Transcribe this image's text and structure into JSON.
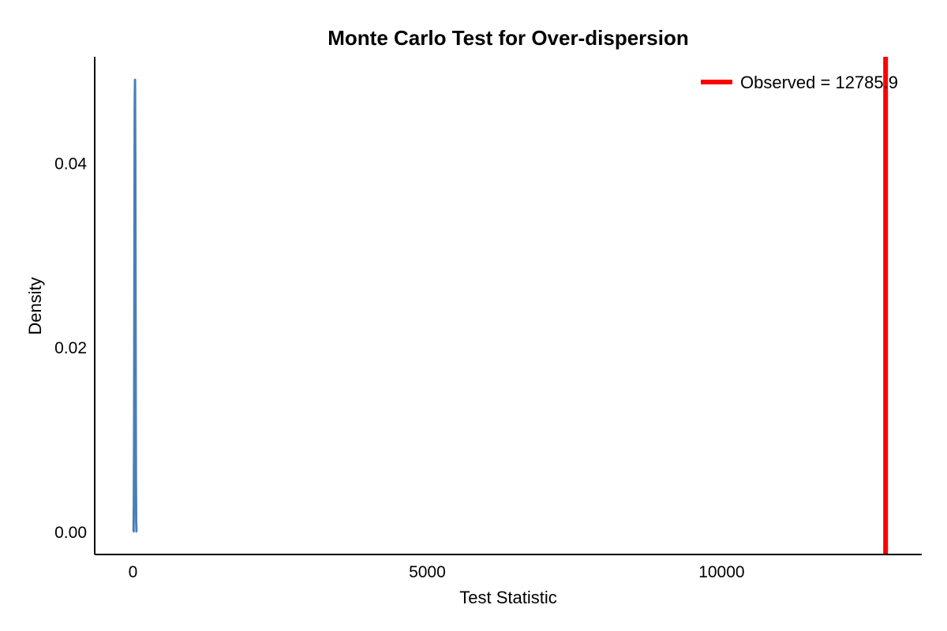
{
  "chart_data": {
    "type": "line",
    "title": "Monte Carlo Test for Over-dispersion",
    "xlabel": "Test Statistic",
    "ylabel": "Density",
    "xlim": [
      -650,
      13400
    ],
    "ylim": [
      -0.0025,
      0.0515
    ],
    "x_ticks": [
      {
        "value": 0,
        "label": "0"
      },
      {
        "value": 5000,
        "label": "5000"
      },
      {
        "value": 10000,
        "label": "10000"
      }
    ],
    "y_ticks": [
      {
        "value": 0.0,
        "label": "0.00"
      },
      {
        "value": 0.02,
        "label": "0.02"
      },
      {
        "value": 0.04,
        "label": "0.04"
      }
    ],
    "series": [
      {
        "kind": "density",
        "color": "#4a7fb8",
        "x": [
          0,
          10,
          15,
          20,
          25,
          30,
          35,
          40,
          45,
          50,
          55,
          60,
          70
        ],
        "y": [
          0.0,
          0.0,
          0.003,
          0.012,
          0.03,
          0.046,
          0.049,
          0.04,
          0.02,
          0.006,
          0.001,
          0.0,
          0.0
        ]
      }
    ],
    "observed": {
      "value": 12785.9,
      "color": "#ff0000",
      "label": "Observed = 12785.9"
    },
    "legend_position": "top-right",
    "grid": false
  }
}
